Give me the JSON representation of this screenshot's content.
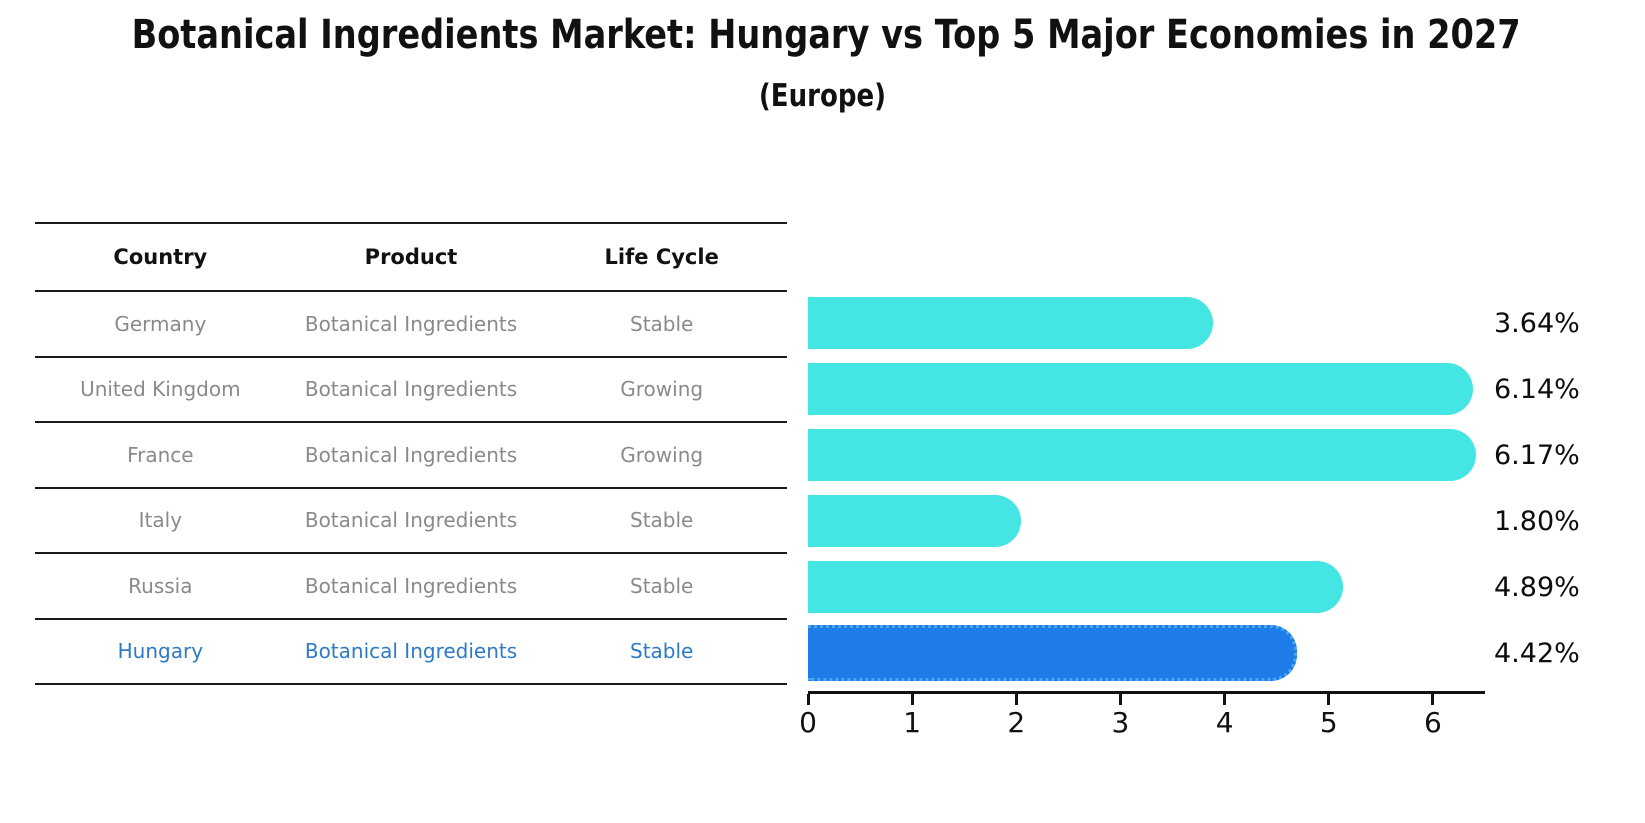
{
  "title": "Botanical Ingredients Market: Hungary vs Top 5 Major Economies in 2027",
  "subtitle": "(Europe)",
  "table": {
    "headers": [
      "Country",
      "Product",
      "Life Cycle"
    ],
    "rows": [
      {
        "country": "Germany",
        "product": "Botanical Ingredients",
        "life_cycle": "Stable",
        "highlighted": false
      },
      {
        "country": "United Kingdom",
        "product": "Botanical Ingredients",
        "life_cycle": "Growing",
        "highlighted": false
      },
      {
        "country": "France",
        "product": "Botanical Ingredients",
        "life_cycle": "Growing",
        "highlighted": false
      },
      {
        "country": "Italy",
        "product": "Botanical Ingredients",
        "life_cycle": "Stable",
        "highlighted": false
      },
      {
        "country": "Russia",
        "product": "Botanical Ingredients",
        "life_cycle": "Stable",
        "highlighted": false
      },
      {
        "country": "Hungary",
        "product": "Botanical Ingredients",
        "life_cycle": "Stable",
        "highlighted": true
      }
    ]
  },
  "chart_data": {
    "type": "bar",
    "orientation": "horizontal",
    "title": "Botanical Ingredients Market: Hungary vs Top 5 Major Economies in 2027",
    "subtitle": "(Europe)",
    "categories": [
      "Germany",
      "United Kingdom",
      "France",
      "Italy",
      "Russia",
      "Hungary"
    ],
    "values": [
      3.64,
      6.14,
      6.17,
      1.8,
      4.89,
      4.42
    ],
    "value_labels": [
      "3.64%",
      "6.14%",
      "6.17%",
      "1.80%",
      "4.89%",
      "4.42%"
    ],
    "xlabel": "",
    "ylabel": "",
    "xlim": [
      0,
      6.5
    ],
    "x_ticks": [
      0,
      1,
      2,
      3,
      4,
      5,
      6
    ],
    "grid": false,
    "legend": false,
    "highlight_index": 5,
    "bar_color": "#43e6e3",
    "highlight_color": "#1e7ce8",
    "highlight_border_color": "#4aa6f2",
    "highlight_text_color": "#2e7bc4",
    "text_color": "#8a8a8a"
  }
}
